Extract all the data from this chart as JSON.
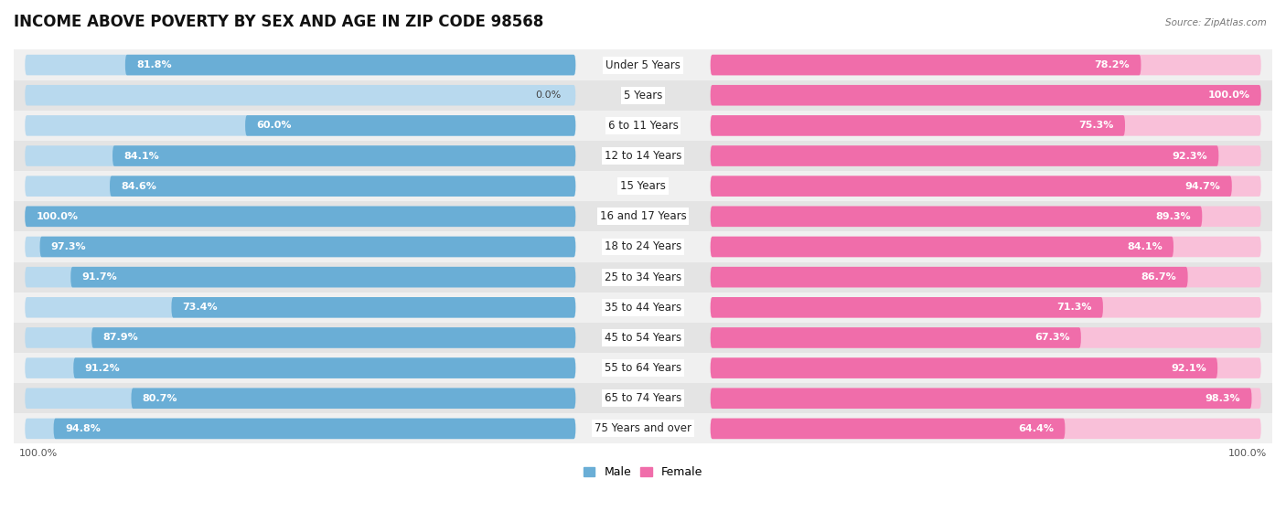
{
  "title": "INCOME ABOVE POVERTY BY SEX AND AGE IN ZIP CODE 98568",
  "source": "Source: ZipAtlas.com",
  "categories": [
    "Under 5 Years",
    "5 Years",
    "6 to 11 Years",
    "12 to 14 Years",
    "15 Years",
    "16 and 17 Years",
    "18 to 24 Years",
    "25 to 34 Years",
    "35 to 44 Years",
    "45 to 54 Years",
    "55 to 64 Years",
    "65 to 74 Years",
    "75 Years and over"
  ],
  "male_values": [
    81.8,
    0.0,
    60.0,
    84.1,
    84.6,
    100.0,
    97.3,
    91.7,
    73.4,
    87.9,
    91.2,
    80.7,
    94.8
  ],
  "female_values": [
    78.2,
    100.0,
    75.3,
    92.3,
    94.7,
    89.3,
    84.1,
    86.7,
    71.3,
    67.3,
    92.1,
    98.3,
    64.4
  ],
  "male_color": "#6aaed6",
  "male_color_light": "#b8d9ee",
  "female_color": "#f06daa",
  "female_color_light": "#f9c0d9",
  "row_bg_colors": [
    "#f0f0f0",
    "#e4e4e4"
  ],
  "title_fontsize": 12,
  "label_fontsize": 8.5,
  "value_fontsize": 8.0,
  "axis_label_fontsize": 8,
  "max_value": 100.0
}
